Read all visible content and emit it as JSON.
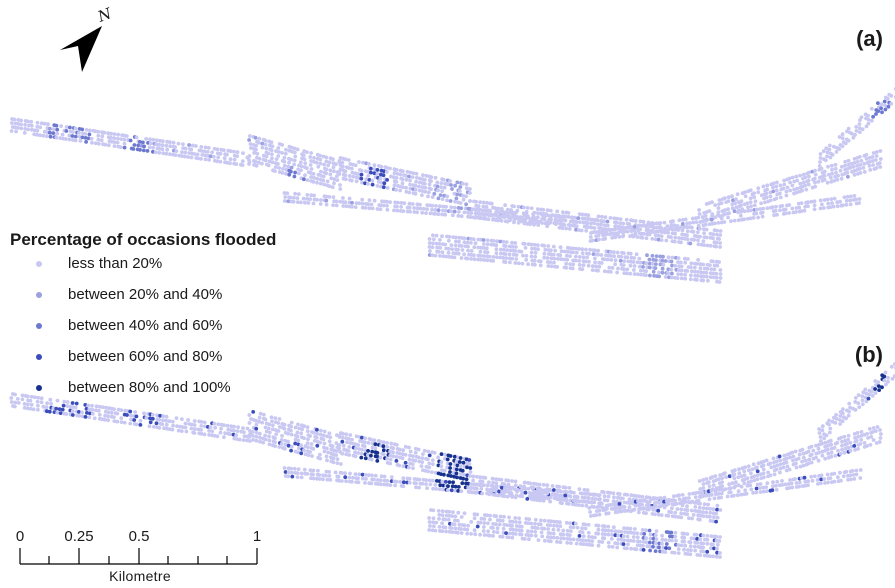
{
  "panels": {
    "a_label": "(a)",
    "b_label": "(b)"
  },
  "north_arrow": {
    "icon": "north-arrow-icon",
    "letter": "N"
  },
  "legend": {
    "title": "Percentage of occasions flooded",
    "items": [
      {
        "label": "less than 20%",
        "color": "#c8c8f2"
      },
      {
        "label": "between 20% and 40%",
        "color": "#9aa0e0"
      },
      {
        "label": "between 40% and 60%",
        "color": "#6d78d0"
      },
      {
        "label": "between 60% and 80%",
        "color": "#3a4dbb"
      },
      {
        "label": "between 80% and 100%",
        "color": "#17318f"
      }
    ]
  },
  "scale_bar": {
    "ticks": [
      "0",
      "0.25",
      "0.5",
      "1"
    ],
    "unit": "Kilometre"
  }
}
